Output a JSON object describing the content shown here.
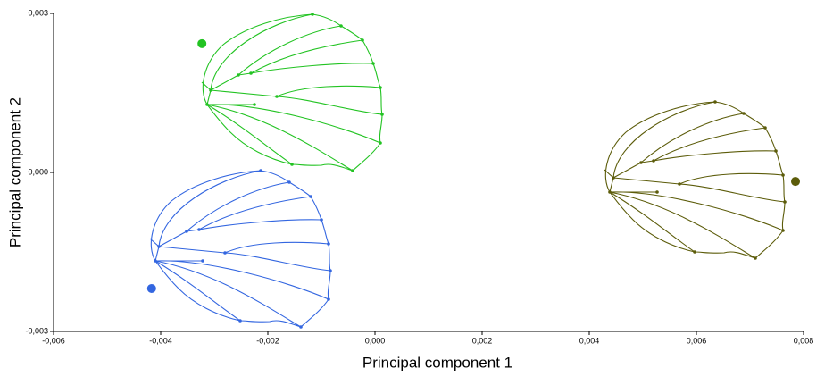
{
  "chart_data": {
    "type": "scatter",
    "xlabel": "Principal component 1",
    "ylabel": "Principal component 2",
    "x": [
      -0.00323,
      -0.00417,
      0.00785
    ],
    "values": [
      0.00243,
      -0.00219,
      -0.00017
    ],
    "colors": [
      "#22c322",
      "#3366e0",
      "#5c5c0a"
    ],
    "xlim": [
      -0.006,
      0.008
    ],
    "xticks": [
      {
        "value": -0.006,
        "label": "-0,006"
      },
      {
        "value": -0.004,
        "label": "-0,004"
      },
      {
        "value": -0.002,
        "label": "-0,002"
      },
      {
        "value": 0,
        "label": "0,000"
      },
      {
        "value": 0.002,
        "label": "0,002"
      },
      {
        "value": 0.004,
        "label": "0,004"
      },
      {
        "value": 0.006,
        "label": "0,006"
      },
      {
        "value": 0.008,
        "label": "0,008"
      }
    ],
    "ylim": [
      -0.003,
      0.003
    ],
    "yticks": [
      {
        "value": -0.003,
        "label": "-0,003"
      },
      {
        "value": 0,
        "label": "0,000"
      },
      {
        "value": 0.003,
        "label": "0,003"
      }
    ]
  }
}
